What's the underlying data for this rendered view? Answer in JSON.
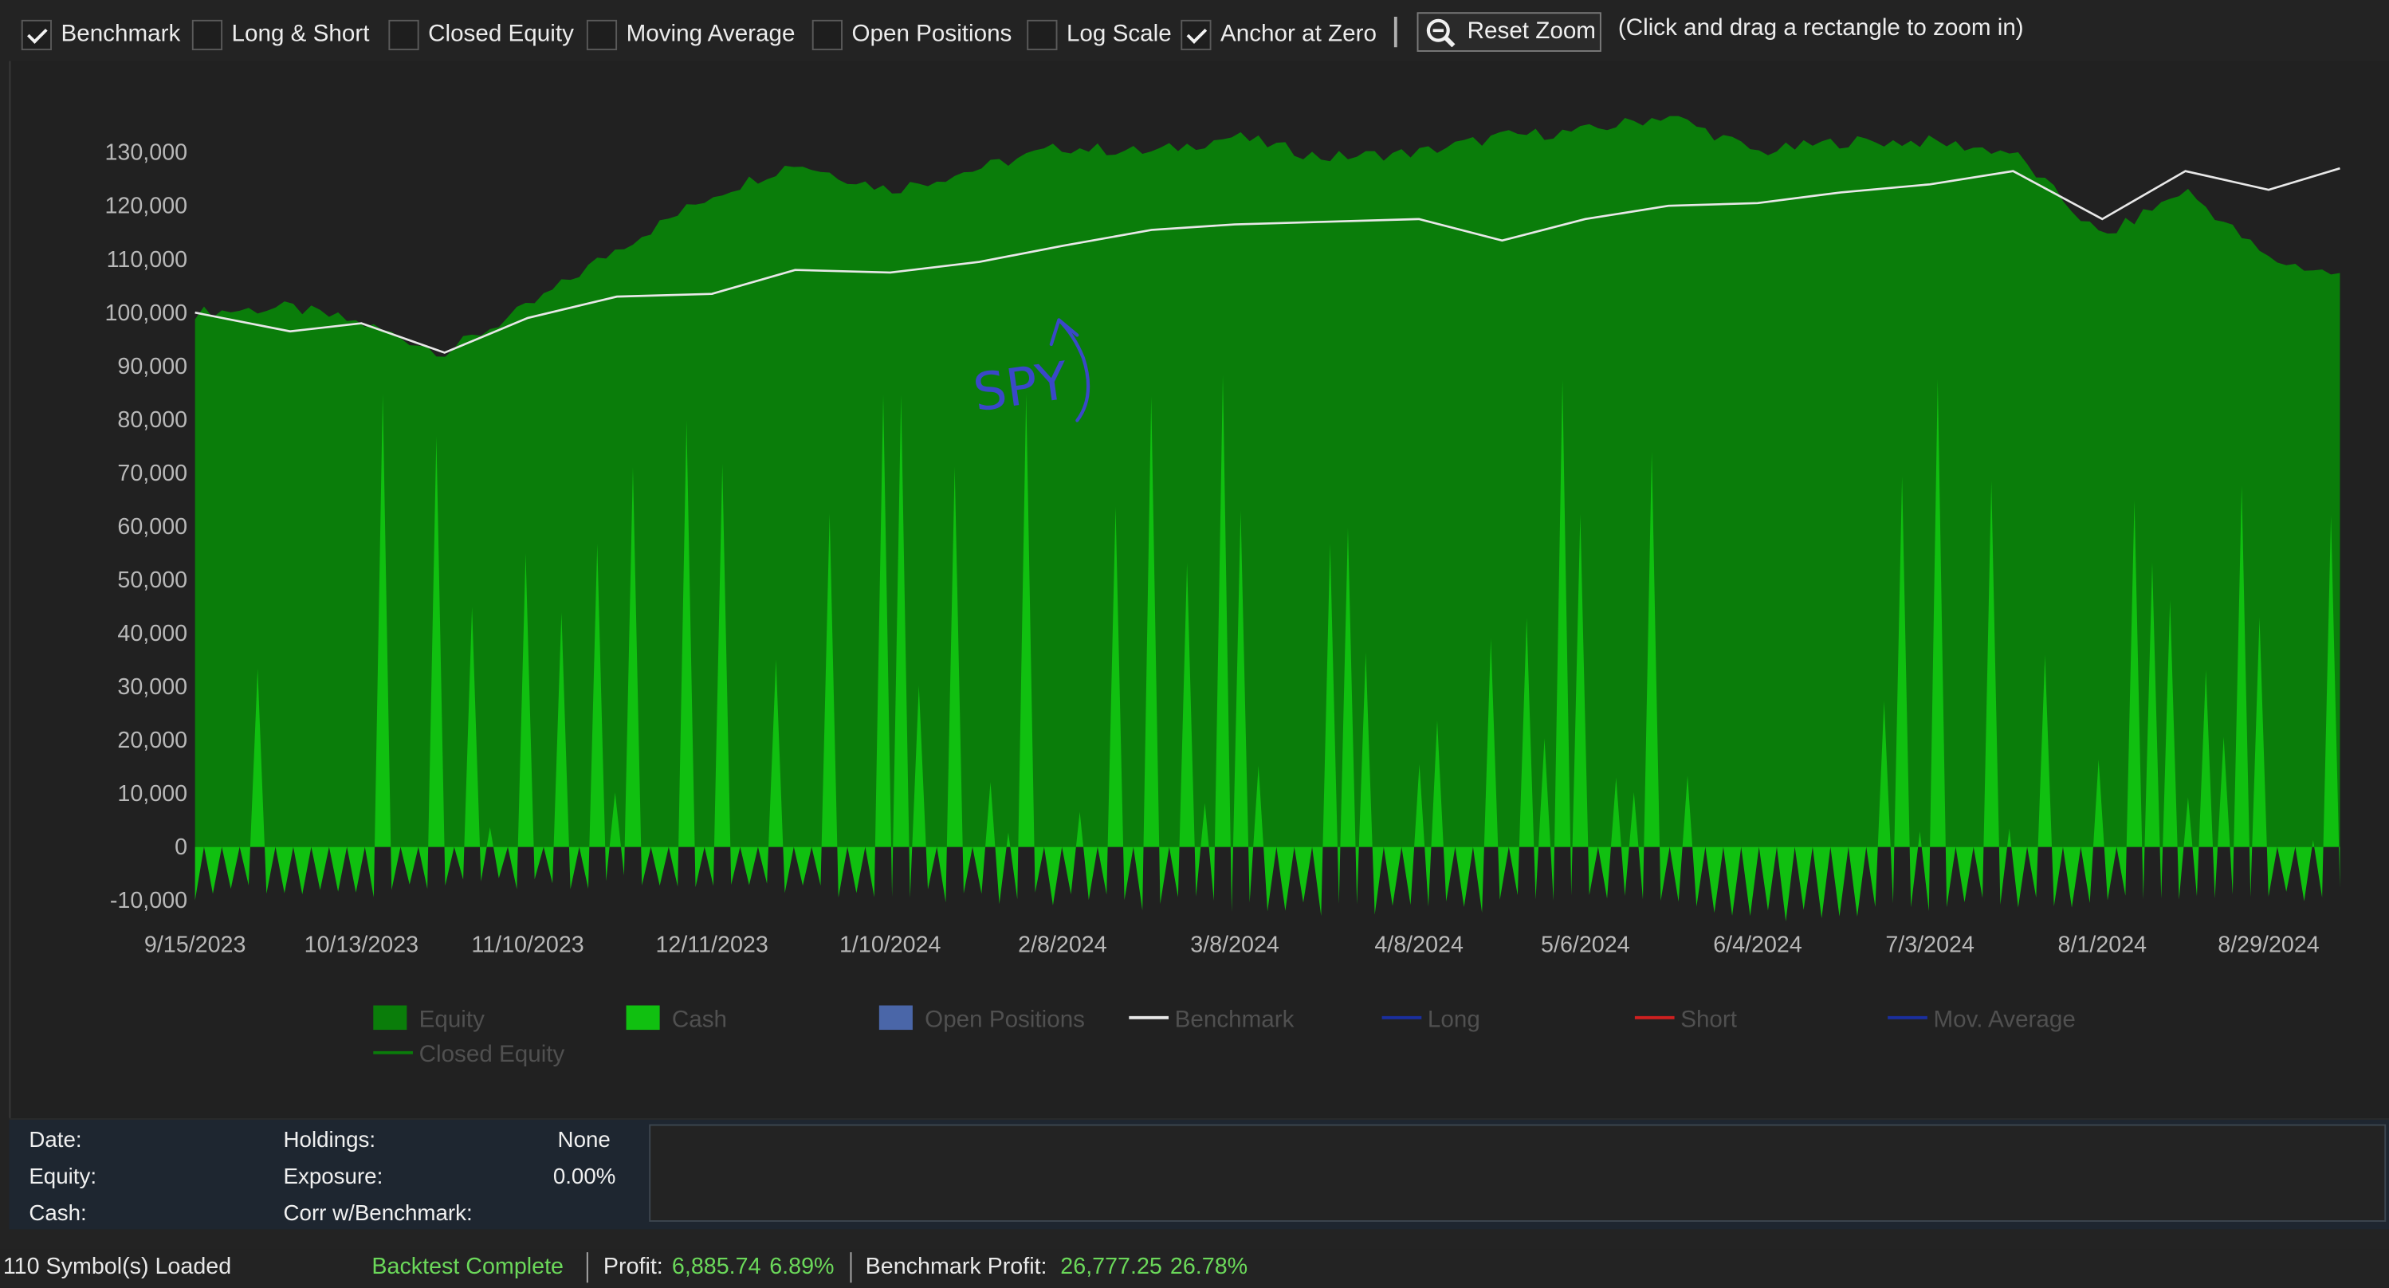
{
  "toolbar": {
    "checkboxes": [
      {
        "label": "Benchmark",
        "checked": true
      },
      {
        "label": "Long & Short",
        "checked": false
      },
      {
        "label": "Closed Equity",
        "checked": false
      },
      {
        "label": "Moving Average",
        "checked": false
      },
      {
        "label": "Open Positions",
        "checked": false
      },
      {
        "label": "Log Scale",
        "checked": false
      },
      {
        "label": "Anchor at Zero",
        "checked": true
      }
    ],
    "reset_zoom_label": "Reset Zoom",
    "hint": "(Click and drag a rectangle to zoom in)"
  },
  "chart_data": {
    "type": "area",
    "x_tick_labels": [
      "9/15/2023",
      "10/13/2023",
      "11/10/2023",
      "12/11/2023",
      "1/10/2024",
      "2/8/2024",
      "3/8/2024",
      "4/8/2024",
      "5/6/2024",
      "6/4/2024",
      "7/3/2024",
      "8/1/2024",
      "8/29/2024"
    ],
    "y_tick_labels": [
      "-10,000",
      "0",
      "10,000",
      "20,000",
      "30,000",
      "40,000",
      "50,000",
      "60,000",
      "70,000",
      "80,000",
      "90,000",
      "100,000",
      "110,000",
      "120,000",
      "130,000"
    ],
    "ylim": [
      -10000,
      130000
    ],
    "series": [
      {
        "name": "Equity",
        "color": "#0a7d0a",
        "x": [
          "9/15/2023",
          "10/1/2023",
          "10/13/2023",
          "10/27/2023",
          "11/10/2023",
          "11/25/2023",
          "12/11/2023",
          "12/25/2023",
          "1/10/2024",
          "1/25/2024",
          "2/8/2024",
          "2/23/2024",
          "3/8/2024",
          "3/23/2024",
          "4/8/2024",
          "4/22/2024",
          "5/6/2024",
          "5/20/2024",
          "6/4/2024",
          "6/18/2024",
          "7/3/2024",
          "7/17/2024",
          "8/1/2024",
          "8/15/2024",
          "8/29/2024",
          "9/10/2024"
        ],
        "values": [
          100000,
          101000,
          98000,
          92500,
          101000,
          112000,
          122000,
          128000,
          123000,
          127000,
          131000,
          130000,
          133000,
          129000,
          130000,
          133000,
          134000,
          137000,
          130000,
          132000,
          132000,
          130000,
          114000,
          123000,
          110000,
          107000
        ]
      },
      {
        "name": "Cash",
        "color": "#10c010",
        "x": [
          "9/15/2023",
          "10/13/2023",
          "11/10/2023",
          "12/11/2023",
          "1/10/2024",
          "2/8/2024",
          "3/8/2024",
          "4/8/2024",
          "5/6/2024",
          "6/4/2024",
          "7/3/2024",
          "8/1/2024",
          "8/29/2024"
        ],
        "values": [
          -9000,
          -8000,
          -7000,
          -6000,
          -9000,
          -10000,
          -11000,
          -12000,
          -9000,
          -13000,
          -11000,
          -10000,
          -9000
        ]
      },
      {
        "name": "Benchmark",
        "color": "#e8e8e8",
        "x": [
          "9/15/2023",
          "10/1/2023",
          "10/13/2023",
          "10/27/2023",
          "11/10/2023",
          "11/25/2023",
          "12/11/2023",
          "12/25/2023",
          "1/10/2024",
          "1/25/2024",
          "2/8/2024",
          "2/23/2024",
          "3/8/2024",
          "3/23/2024",
          "4/8/2024",
          "4/22/2024",
          "5/6/2024",
          "5/20/2024",
          "6/4/2024",
          "6/18/2024",
          "7/3/2024",
          "7/17/2024",
          "8/1/2024",
          "8/15/2024",
          "8/29/2024",
          "9/10/2024"
        ],
        "values": [
          100000,
          96500,
          98000,
          92500,
          99000,
          103000,
          103500,
          108000,
          107500,
          109500,
          112500,
          115500,
          116500,
          117000,
          117500,
          113500,
          117500,
          120000,
          120500,
          122500,
          124000,
          126500,
          117500,
          126500,
          123000,
          127000
        ]
      }
    ],
    "legend": {
      "position": "bottom",
      "items": [
        {
          "label": "Equity",
          "swatch": "box",
          "color": "#0a7d0a"
        },
        {
          "label": "Cash",
          "swatch": "box",
          "color": "#10c010"
        },
        {
          "label": "Open Positions",
          "swatch": "box",
          "color": "#4a66a8"
        },
        {
          "label": "Benchmark",
          "swatch": "line",
          "color": "#e8e8e8"
        },
        {
          "label": "Long",
          "swatch": "line",
          "color": "#1a2fa0"
        },
        {
          "label": "Short",
          "swatch": "line",
          "color": "#d02020"
        },
        {
          "label": "Mov. Average",
          "swatch": "line",
          "color": "#1a2fa0"
        },
        {
          "label": "Closed Equity",
          "swatch": "line",
          "color": "#0a7d0a"
        }
      ]
    },
    "annotation": {
      "text": "SPY",
      "color": "#3a48c8"
    }
  },
  "info": {
    "date_label": "Date:",
    "date_value": "",
    "equity_label": "Equity:",
    "equity_value": "",
    "cash_label": "Cash:",
    "cash_value": "",
    "holdings_label": "Holdings:",
    "holdings_value": "None",
    "exposure_label": "Exposure:",
    "exposure_value": "0.00%",
    "corr_label": "Corr w/Benchmark:",
    "corr_value": ""
  },
  "status": {
    "symbols": "110 Symbol(s) Loaded",
    "state": "Backtest Complete",
    "profit_label": "Profit:",
    "profit_value": "6,885.74",
    "profit_pct": "6.89%",
    "bench_label": "Benchmark Profit:",
    "bench_value": "26,777.25",
    "bench_pct": "26.78%"
  }
}
